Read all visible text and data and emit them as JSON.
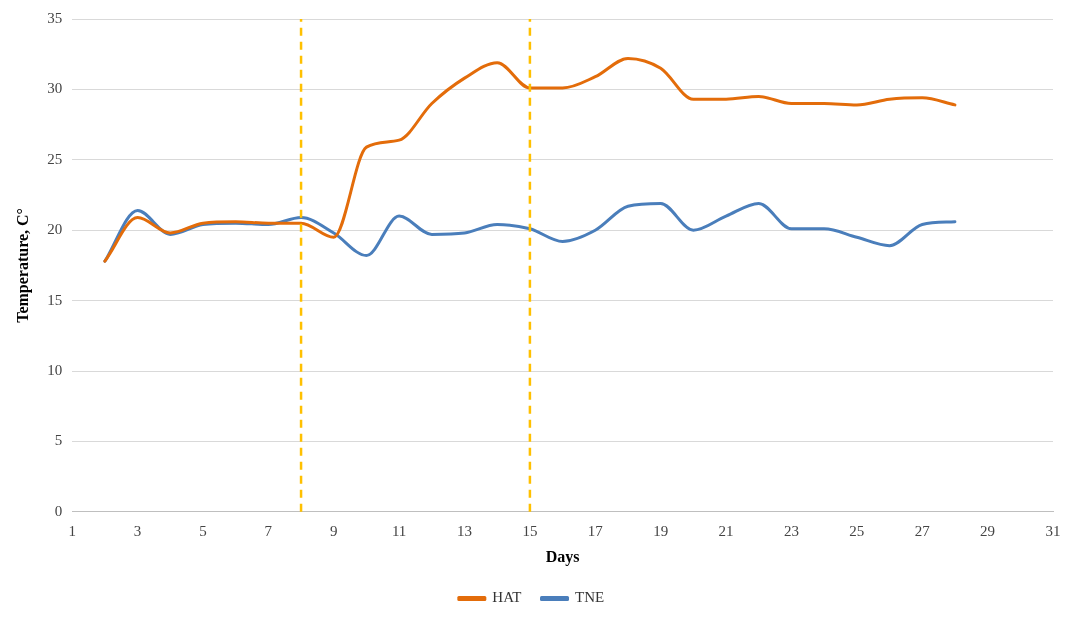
{
  "chart_data": {
    "type": "line",
    "xlabel": "Days",
    "ylabel": "Temperature, C°",
    "x": [
      2,
      3,
      4,
      5,
      6,
      7,
      8,
      9,
      10,
      11,
      12,
      13,
      14,
      15,
      16,
      17,
      18,
      19,
      20,
      21,
      22,
      23,
      24,
      25,
      26,
      27,
      28
    ],
    "series": [
      {
        "name": "HAT",
        "color": "#e36c0a",
        "values": [
          17.8,
          20.9,
          19.8,
          20.5,
          20.6,
          20.5,
          20.5,
          19.5,
          25.9,
          26.4,
          29.0,
          30.8,
          31.9,
          30.1,
          30.1,
          30.9,
          32.2,
          31.5,
          29.3,
          29.3,
          29.5,
          29.0,
          29.0,
          28.9,
          29.3,
          29.4,
          28.9
        ]
      },
      {
        "name": "TNE",
        "color": "#4a7ebb",
        "values": [
          17.8,
          21.4,
          19.7,
          20.4,
          20.5,
          20.4,
          20.9,
          19.8,
          18.2,
          21.0,
          19.7,
          19.8,
          20.4,
          20.1,
          19.2,
          20.0,
          21.7,
          21.9,
          20.0,
          21.0,
          21.9,
          20.1,
          20.1,
          19.5,
          18.9,
          20.4,
          20.6
        ]
      }
    ],
    "xlim": [
      1,
      31
    ],
    "xticks": [
      1,
      3,
      5,
      7,
      9,
      11,
      13,
      15,
      17,
      19,
      21,
      23,
      25,
      27,
      29,
      31
    ],
    "ylim": [
      0,
      35
    ],
    "yticks": [
      0,
      5,
      10,
      15,
      20,
      25,
      30,
      35
    ],
    "ref_lines": [
      {
        "axis": "x",
        "value": 8,
        "color": "#ffc000",
        "line_style": "dashed"
      },
      {
        "axis": "x",
        "value": 15,
        "color": "#ffc000",
        "line_style": "dashed"
      }
    ],
    "grid": "y",
    "legend": "bottom",
    "marker": "none",
    "line_style": "solid"
  }
}
